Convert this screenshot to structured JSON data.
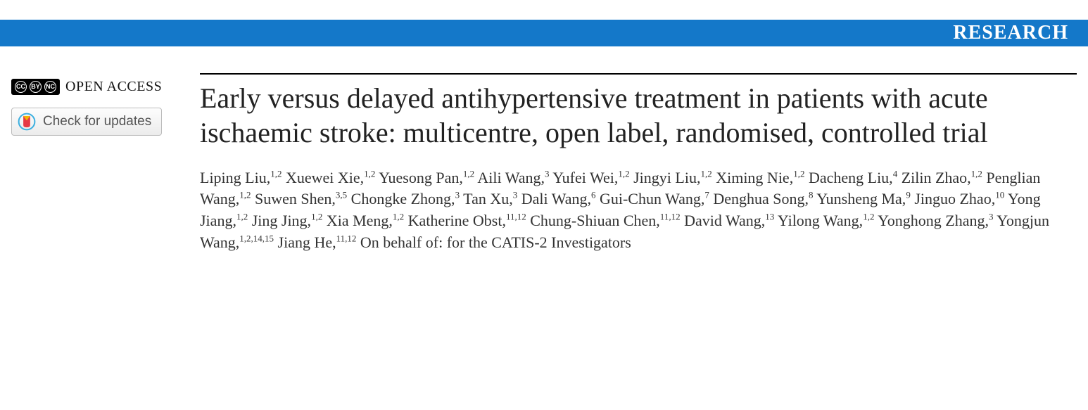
{
  "banner": {
    "label": "RESEARCH",
    "background_color": "#1478c9",
    "text_color": "#ffffff"
  },
  "sidebar": {
    "open_access_label": "OPEN ACCESS",
    "cc_text": "CC",
    "cc_sub1": "BY",
    "cc_sub2": "NC",
    "updates_label": "Check for updates"
  },
  "article": {
    "title": "Early versus delayed antihypertensive treatment in patients with acute ischaemic stroke: multicentre, open label, randomised, controlled trial",
    "authors": [
      {
        "name": "Liping Liu",
        "affil": "1,2"
      },
      {
        "name": "Xuewei Xie",
        "affil": "1,2"
      },
      {
        "name": "Yuesong Pan",
        "affil": "1,2"
      },
      {
        "name": "Aili Wang",
        "affil": "3"
      },
      {
        "name": "Yufei Wei",
        "affil": "1,2"
      },
      {
        "name": "Jingyi Liu",
        "affil": "1,2"
      },
      {
        "name": "Ximing Nie",
        "affil": "1,2"
      },
      {
        "name": "Dacheng Liu",
        "affil": "4"
      },
      {
        "name": "Zilin Zhao",
        "affil": "1,2"
      },
      {
        "name": "Penglian Wang",
        "affil": "1,2"
      },
      {
        "name": "Suwen Shen",
        "affil": "3,5"
      },
      {
        "name": "Chongke Zhong",
        "affil": "3"
      },
      {
        "name": "Tan Xu",
        "affil": "3"
      },
      {
        "name": "Dali Wang",
        "affil": "6"
      },
      {
        "name": "Gui-Chun Wang",
        "affil": "7"
      },
      {
        "name": "Denghua Song",
        "affil": "8"
      },
      {
        "name": "Yunsheng Ma",
        "affil": "9"
      },
      {
        "name": "Jinguo Zhao",
        "affil": "10"
      },
      {
        "name": "Yong Jiang",
        "affil": "1,2"
      },
      {
        "name": "Jing Jing",
        "affil": "1,2"
      },
      {
        "name": "Xia Meng",
        "affil": "1,2"
      },
      {
        "name": "Katherine Obst",
        "affil": "11,12"
      },
      {
        "name": "Chung-Shiuan Chen",
        "affil": "11,12"
      },
      {
        "name": "David Wang",
        "affil": "13"
      },
      {
        "name": "Yilong Wang",
        "affil": "1,2"
      },
      {
        "name": "Yonghong Zhang",
        "affil": "3"
      },
      {
        "name": "Yongjun Wang",
        "affil": "1,2,14,15"
      },
      {
        "name": "Jiang He",
        "affil": "11,12"
      }
    ],
    "behalf_text": "On behalf of: for the CATIS-2 Investigators",
    "title_fontsize": 40,
    "author_fontsize": 22,
    "title_color": "#222222",
    "author_color": "#333333",
    "rule_color": "#000000"
  }
}
